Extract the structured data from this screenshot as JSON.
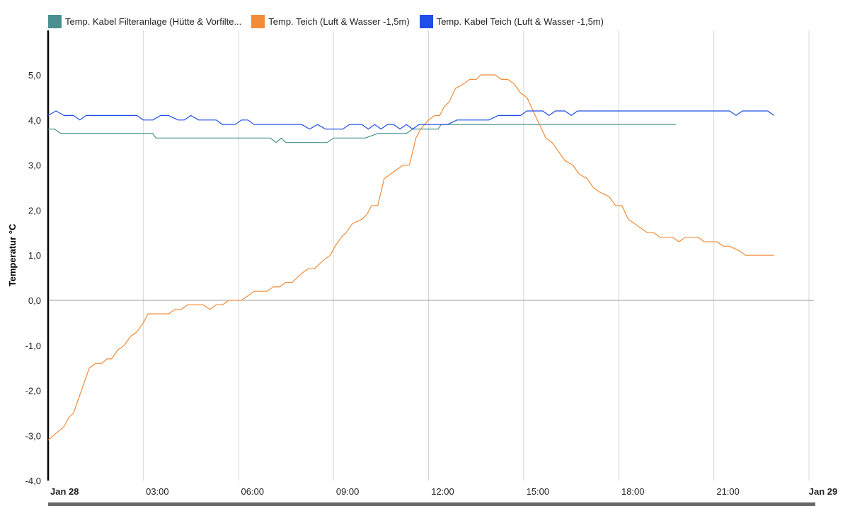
{
  "chart_data": {
    "type": "line",
    "ylabel": "Temperatur °C",
    "ylim": [
      -4.0,
      5.0
    ],
    "yticks": [
      "-4,0",
      "-3,0",
      "-2,0",
      "-1,0",
      "0,0",
      "1,0",
      "2,0",
      "3,0",
      "4,0",
      "5,0"
    ],
    "xticks": [
      {
        "label": "Jan 28",
        "hour": 0,
        "bold": true
      },
      {
        "label": "03:00",
        "hour": 3,
        "bold": false
      },
      {
        "label": "06:00",
        "hour": 6,
        "bold": false
      },
      {
        "label": "09:00",
        "hour": 9,
        "bold": false
      },
      {
        "label": "12:00",
        "hour": 12,
        "bold": false
      },
      {
        "label": "15:00",
        "hour": 15,
        "bold": false
      },
      {
        "label": "18:00",
        "hour": 18,
        "bold": false
      },
      {
        "label": "21:00",
        "hour": 21,
        "bold": false
      },
      {
        "label": "Jan 29",
        "hour": 24,
        "bold": true
      }
    ],
    "xlim_hours": [
      0,
      24.2
    ],
    "grid": true,
    "legend_position": "top-left",
    "series": [
      {
        "name": "Temp. Kabel Filteranlage (Hütte & Vorfilte...",
        "color": "#4a8f8f",
        "points": [
          [
            0.0,
            3.8
          ],
          [
            0.2,
            3.8
          ],
          [
            0.4,
            3.7
          ],
          [
            1.0,
            3.7
          ],
          [
            2.0,
            3.7
          ],
          [
            3.0,
            3.7
          ],
          [
            3.3,
            3.7
          ],
          [
            3.4,
            3.6
          ],
          [
            4.0,
            3.6
          ],
          [
            5.0,
            3.6
          ],
          [
            6.0,
            3.6
          ],
          [
            7.0,
            3.6
          ],
          [
            7.2,
            3.5
          ],
          [
            7.35,
            3.6
          ],
          [
            7.5,
            3.5
          ],
          [
            8.0,
            3.5
          ],
          [
            8.8,
            3.5
          ],
          [
            9.0,
            3.6
          ],
          [
            10.0,
            3.6
          ],
          [
            10.4,
            3.7
          ],
          [
            11.3,
            3.7
          ],
          [
            11.5,
            3.8
          ],
          [
            12.3,
            3.8
          ],
          [
            12.4,
            3.9
          ],
          [
            13.0,
            3.9
          ],
          [
            14.0,
            3.9
          ],
          [
            15.0,
            3.9
          ],
          [
            16.0,
            3.9
          ],
          [
            17.0,
            3.9
          ],
          [
            18.0,
            3.9
          ],
          [
            19.0,
            3.9
          ],
          [
            19.8,
            3.9
          ]
        ]
      },
      {
        "name": "Temp. Teich (Luft & Wasser -1,5m)",
        "color": "#f28c38",
        "points": [
          [
            0.0,
            -3.1
          ],
          [
            0.5,
            -2.8
          ],
          [
            0.65,
            -2.6
          ],
          [
            0.8,
            -2.5
          ],
          [
            1.0,
            -2.1
          ],
          [
            1.3,
            -1.5
          ],
          [
            1.5,
            -1.4
          ],
          [
            1.7,
            -1.4
          ],
          [
            1.85,
            -1.3
          ],
          [
            2.0,
            -1.3
          ],
          [
            2.2,
            -1.1
          ],
          [
            2.4,
            -1.0
          ],
          [
            2.6,
            -0.8
          ],
          [
            2.8,
            -0.7
          ],
          [
            3.0,
            -0.5
          ],
          [
            3.15,
            -0.3
          ],
          [
            3.4,
            -0.3
          ],
          [
            3.8,
            -0.3
          ],
          [
            4.0,
            -0.2
          ],
          [
            4.2,
            -0.2
          ],
          [
            4.4,
            -0.1
          ],
          [
            4.9,
            -0.1
          ],
          [
            5.1,
            -0.2
          ],
          [
            5.3,
            -0.1
          ],
          [
            5.5,
            -0.1
          ],
          [
            5.7,
            0.0
          ],
          [
            6.1,
            0.0
          ],
          [
            6.3,
            0.1
          ],
          [
            6.5,
            0.2
          ],
          [
            6.9,
            0.2
          ],
          [
            7.1,
            0.3
          ],
          [
            7.3,
            0.3
          ],
          [
            7.5,
            0.4
          ],
          [
            7.7,
            0.4
          ],
          [
            8.0,
            0.6
          ],
          [
            8.2,
            0.7
          ],
          [
            8.4,
            0.7
          ],
          [
            8.7,
            0.9
          ],
          [
            8.9,
            1.0
          ],
          [
            9.05,
            1.2
          ],
          [
            9.25,
            1.4
          ],
          [
            9.4,
            1.5
          ],
          [
            9.6,
            1.7
          ],
          [
            9.9,
            1.8
          ],
          [
            10.05,
            1.9
          ],
          [
            10.2,
            2.1
          ],
          [
            10.4,
            2.1
          ],
          [
            10.6,
            2.7
          ],
          [
            10.8,
            2.8
          ],
          [
            11.0,
            2.9
          ],
          [
            11.2,
            3.0
          ],
          [
            11.4,
            3.0
          ],
          [
            11.6,
            3.6
          ],
          [
            11.75,
            3.8
          ],
          [
            12.0,
            4.0
          ],
          [
            12.2,
            4.1
          ],
          [
            12.35,
            4.1
          ],
          [
            12.5,
            4.3
          ],
          [
            12.65,
            4.4
          ],
          [
            12.85,
            4.7
          ],
          [
            13.1,
            4.8
          ],
          [
            13.3,
            4.9
          ],
          [
            13.5,
            4.9
          ],
          [
            13.65,
            5.0
          ],
          [
            14.1,
            5.0
          ],
          [
            14.3,
            4.9
          ],
          [
            14.5,
            4.9
          ],
          [
            14.7,
            4.8
          ],
          [
            14.9,
            4.6
          ],
          [
            15.1,
            4.5
          ],
          [
            15.3,
            4.2
          ],
          [
            15.5,
            3.9
          ],
          [
            15.7,
            3.6
          ],
          [
            15.9,
            3.5
          ],
          [
            16.1,
            3.3
          ],
          [
            16.3,
            3.1
          ],
          [
            16.55,
            3.0
          ],
          [
            16.75,
            2.8
          ],
          [
            17.0,
            2.7
          ],
          [
            17.2,
            2.5
          ],
          [
            17.4,
            2.4
          ],
          [
            17.7,
            2.3
          ],
          [
            17.9,
            2.1
          ],
          [
            18.1,
            2.1
          ],
          [
            18.3,
            1.8
          ],
          [
            18.5,
            1.7
          ],
          [
            18.7,
            1.6
          ],
          [
            18.9,
            1.5
          ],
          [
            19.1,
            1.5
          ],
          [
            19.3,
            1.4
          ],
          [
            19.7,
            1.4
          ],
          [
            19.9,
            1.3
          ],
          [
            20.1,
            1.4
          ],
          [
            20.5,
            1.4
          ],
          [
            20.7,
            1.3
          ],
          [
            21.1,
            1.3
          ],
          [
            21.3,
            1.2
          ],
          [
            21.5,
            1.2
          ],
          [
            21.8,
            1.1
          ],
          [
            22.0,
            1.0
          ],
          [
            22.3,
            1.0
          ],
          [
            22.7,
            1.0
          ],
          [
            22.9,
            1.0
          ]
        ]
      },
      {
        "name": "Temp. Kabel Teich (Luft & Wasser -1,5m)",
        "color": "#1f4fe8",
        "points": [
          [
            0.0,
            4.1
          ],
          [
            0.25,
            4.2
          ],
          [
            0.5,
            4.1
          ],
          [
            0.8,
            4.1
          ],
          [
            1.0,
            4.0
          ],
          [
            1.2,
            4.1
          ],
          [
            2.8,
            4.1
          ],
          [
            3.0,
            4.0
          ],
          [
            3.3,
            4.0
          ],
          [
            3.55,
            4.1
          ],
          [
            3.8,
            4.1
          ],
          [
            4.1,
            4.0
          ],
          [
            4.3,
            4.0
          ],
          [
            4.5,
            4.1
          ],
          [
            4.75,
            4.0
          ],
          [
            5.3,
            4.0
          ],
          [
            5.5,
            3.9
          ],
          [
            5.9,
            3.9
          ],
          [
            6.1,
            4.0
          ],
          [
            6.3,
            4.0
          ],
          [
            6.5,
            3.9
          ],
          [
            7.1,
            3.9
          ],
          [
            7.5,
            3.9
          ],
          [
            7.8,
            3.9
          ],
          [
            8.0,
            3.9
          ],
          [
            8.25,
            3.8
          ],
          [
            8.5,
            3.9
          ],
          [
            8.75,
            3.8
          ],
          [
            9.3,
            3.8
          ],
          [
            9.5,
            3.9
          ],
          [
            9.9,
            3.9
          ],
          [
            10.1,
            3.8
          ],
          [
            10.3,
            3.9
          ],
          [
            10.5,
            3.8
          ],
          [
            10.7,
            3.9
          ],
          [
            10.9,
            3.9
          ],
          [
            11.1,
            3.8
          ],
          [
            11.3,
            3.9
          ],
          [
            11.5,
            3.8
          ],
          [
            11.7,
            3.9
          ],
          [
            12.6,
            3.9
          ],
          [
            12.9,
            4.0
          ],
          [
            13.9,
            4.0
          ],
          [
            14.2,
            4.1
          ],
          [
            14.9,
            4.1
          ],
          [
            15.1,
            4.2
          ],
          [
            15.6,
            4.2
          ],
          [
            15.8,
            4.1
          ],
          [
            16.0,
            4.2
          ],
          [
            16.3,
            4.2
          ],
          [
            16.5,
            4.1
          ],
          [
            16.7,
            4.2
          ],
          [
            18.0,
            4.2
          ],
          [
            21.5,
            4.2
          ],
          [
            21.7,
            4.1
          ],
          [
            21.9,
            4.2
          ],
          [
            22.7,
            4.2
          ],
          [
            22.9,
            4.1
          ]
        ]
      }
    ]
  }
}
